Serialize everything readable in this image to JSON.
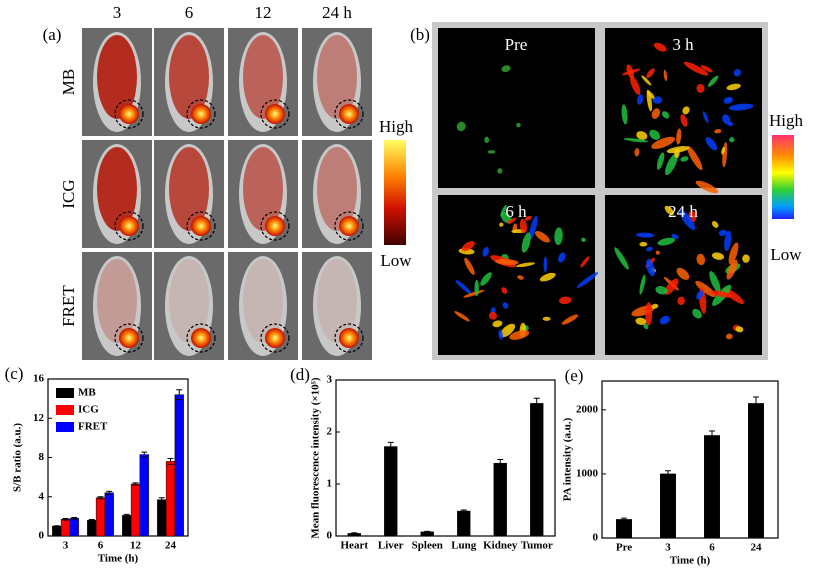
{
  "panel_a": {
    "label": "(a)",
    "columns": [
      "3",
      "6",
      "12",
      "24 h"
    ],
    "rows": [
      "MB",
      "ICG",
      "FRET"
    ],
    "scale_high": "High",
    "scale_low": "Low"
  },
  "panel_b": {
    "label": "(b)",
    "tiles": [
      "Pre",
      "3 h",
      "6 h",
      "24 h"
    ],
    "scale_high": "High",
    "scale_low": "Low"
  },
  "chart_data": [
    {
      "type": "bar",
      "label": "(c)",
      "x_label": "Time (h)",
      "y_label": "S/B ratio (a.u.)",
      "categories": [
        "3",
        "6",
        "12",
        "24"
      ],
      "series": [
        {
          "name": "MB",
          "color": "#000000",
          "values": [
            1.0,
            1.6,
            2.1,
            3.7
          ],
          "errors": [
            0.05,
            0.08,
            0.1,
            0.2
          ]
        },
        {
          "name": "ICG",
          "color": "#ff0000",
          "values": [
            1.7,
            3.9,
            5.3,
            7.6
          ],
          "errors": [
            0.08,
            0.1,
            0.12,
            0.3
          ]
        },
        {
          "name": "FRET",
          "color": "#0000ff",
          "values": [
            1.8,
            4.4,
            8.3,
            14.4
          ],
          "errors": [
            0.08,
            0.15,
            0.25,
            0.5
          ]
        }
      ],
      "ylim": [
        0,
        16
      ],
      "yticks": [
        0,
        4,
        8,
        12,
        16
      ],
      "legend": "upper left"
    },
    {
      "type": "bar",
      "label": "(d)",
      "y_label": "Mean fluorescence intensity (×10⁵)",
      "categories": [
        "Heart",
        "Liver",
        "Spleen",
        "Lung",
        "Kidney",
        "Tumor"
      ],
      "values": [
        0.05,
        1.72,
        0.08,
        0.48,
        1.4,
        2.55
      ],
      "errors": [
        0.01,
        0.08,
        0.01,
        0.02,
        0.07,
        0.1
      ],
      "color": "#000000",
      "ylim": [
        0,
        3
      ],
      "yticks": [
        0,
        1,
        2,
        3
      ]
    },
    {
      "type": "bar",
      "label": "(e)",
      "x_label": "Time (h)",
      "y_label": "PA intensity (a.u.)",
      "categories": [
        "Pre",
        "3",
        "6",
        "24"
      ],
      "values": [
        290,
        1000,
        1600,
        2100
      ],
      "errors": [
        20,
        50,
        70,
        100
      ],
      "color": "#000000",
      "ylim": [
        0,
        2450
      ],
      "yticks": [
        0,
        1000,
        2000
      ]
    }
  ]
}
